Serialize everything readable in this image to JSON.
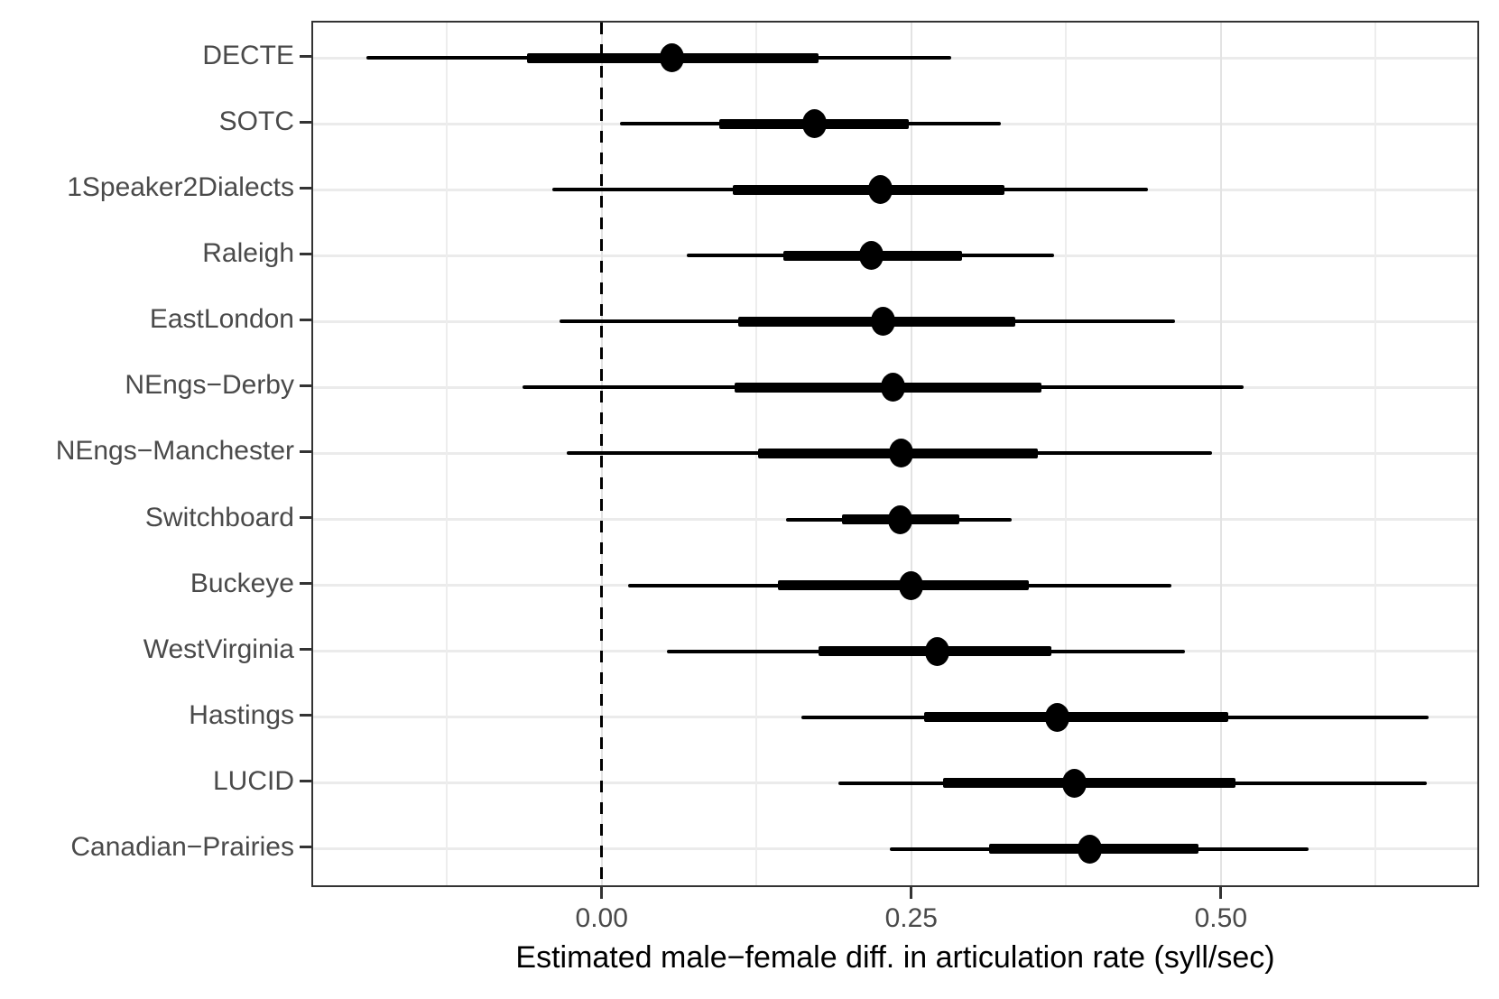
{
  "figure": {
    "background": "#ffffff",
    "panel_border_color": "#333333",
    "gridline_color": "#ebebeb",
    "axis_text_color": "#4a4a4a",
    "mark_color": "#000000"
  },
  "chart_data": {
    "type": "scatter",
    "subtype": "forest-dot-interval",
    "orientation": "horizontal",
    "title": "",
    "xlabel": "Estimated male−female diff. in articulation rate (syll/sec)",
    "ylabel": "",
    "xlim": [
      -0.233,
      0.71
    ],
    "grid": "on",
    "legend": "none",
    "x_ticks": [
      {
        "value": 0.0,
        "label": "0.00"
      },
      {
        "value": 0.25,
        "label": "0.25"
      },
      {
        "value": 0.5,
        "label": "0.50"
      }
    ],
    "x_minor_gridlines": [
      -0.125,
      0.125,
      0.375,
      0.625
    ],
    "reference_line": {
      "x": 0,
      "style": "dashed",
      "color": "#000000"
    },
    "categories": [
      "DECTE",
      "SOTC",
      "1Speaker2Dialects",
      "Raleigh",
      "EastLondon",
      "NEngs−Derby",
      "NEngs−Manchester",
      "Switchboard",
      "Buckeye",
      "WestVirginia",
      "Hastings",
      "LUCID",
      "Canadian−Prairies"
    ],
    "rows": [
      {
        "label": "DECTE",
        "estimate": 0.057,
        "thick_interval": [
          -0.06,
          0.175
        ],
        "thin_interval": [
          -0.19,
          0.282
        ]
      },
      {
        "label": "SOTC",
        "estimate": 0.172,
        "thick_interval": [
          0.095,
          0.248
        ],
        "thin_interval": [
          0.015,
          0.322
        ]
      },
      {
        "label": "1Speaker2Dialects",
        "estimate": 0.225,
        "thick_interval": [
          0.106,
          0.325
        ],
        "thin_interval": [
          -0.04,
          0.441
        ]
      },
      {
        "label": "Raleigh",
        "estimate": 0.218,
        "thick_interval": [
          0.147,
          0.291
        ],
        "thin_interval": [
          0.069,
          0.365
        ]
      },
      {
        "label": "EastLondon",
        "estimate": 0.227,
        "thick_interval": [
          0.11,
          0.334
        ],
        "thin_interval": [
          -0.034,
          0.463
        ]
      },
      {
        "label": "NEngs−Derby",
        "estimate": 0.235,
        "thick_interval": [
          0.107,
          0.355
        ],
        "thin_interval": [
          -0.064,
          0.518
        ]
      },
      {
        "label": "NEngs−Manchester",
        "estimate": 0.242,
        "thick_interval": [
          0.126,
          0.352
        ],
        "thin_interval": [
          -0.028,
          0.493
        ]
      },
      {
        "label": "Switchboard",
        "estimate": 0.241,
        "thick_interval": [
          0.194,
          0.289
        ],
        "thin_interval": [
          0.149,
          0.331
        ]
      },
      {
        "label": "Buckeye",
        "estimate": 0.25,
        "thick_interval": [
          0.142,
          0.345
        ],
        "thin_interval": [
          0.021,
          0.46
        ]
      },
      {
        "label": "WestVirginia",
        "estimate": 0.271,
        "thick_interval": [
          0.175,
          0.363
        ],
        "thin_interval": [
          0.053,
          0.471
        ]
      },
      {
        "label": "Hastings",
        "estimate": 0.368,
        "thick_interval": [
          0.26,
          0.506
        ],
        "thin_interval": [
          0.161,
          0.668
        ]
      },
      {
        "label": "LUCID",
        "estimate": 0.382,
        "thick_interval": [
          0.276,
          0.512
        ],
        "thin_interval": [
          0.191,
          0.666
        ]
      },
      {
        "label": "Canadian−Prairies",
        "estimate": 0.394,
        "thick_interval": [
          0.313,
          0.482
        ],
        "thin_interval": [
          0.233,
          0.571
        ]
      }
    ]
  }
}
